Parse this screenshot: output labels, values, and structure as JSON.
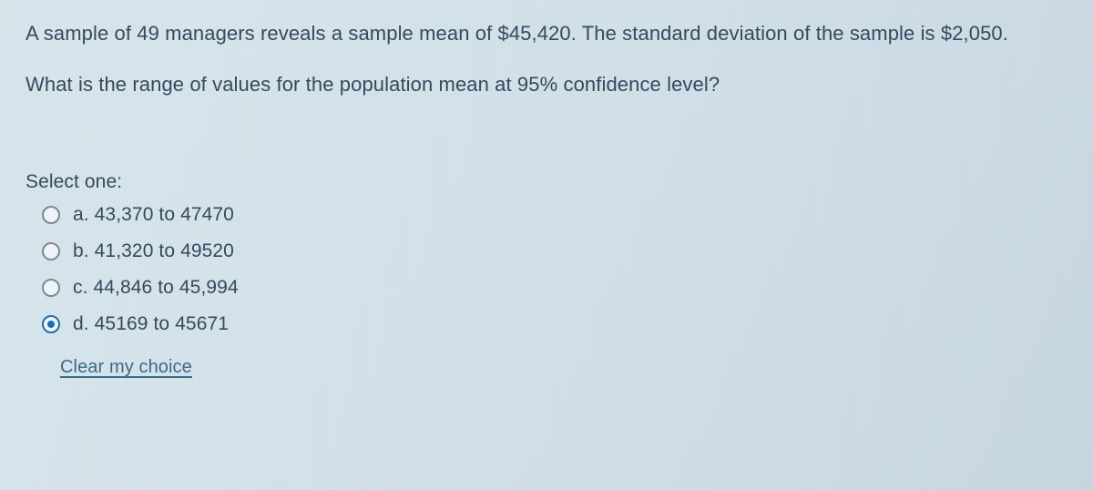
{
  "question": {
    "line1": "A sample of 49 managers reveals a sample mean of $45,420. The standard deviation of the sample is $2,050.",
    "line2": "What is the range of values for the population mean at 95% confidence level?"
  },
  "select_label": "Select one:",
  "options": [
    {
      "letter": "a.",
      "text": "43,370 to 47470",
      "selected": false
    },
    {
      "letter": "b.",
      "text": "41,320 to 49520",
      "selected": false
    },
    {
      "letter": "c.",
      "text": "44,846 to 45,994",
      "selected": false
    },
    {
      "letter": "d.",
      "text": "45169 to 45671",
      "selected": true
    }
  ],
  "clear_label": "Clear my choice",
  "colors": {
    "text": "#344a5e",
    "link": "#3a6a8a",
    "radio_border": "#7a8a96",
    "radio_selected": "#1f6fb2",
    "bg_start": "#d8e5ec",
    "bg_end": "#c6d6e0"
  },
  "font_sizes": {
    "question": 22,
    "option": 21,
    "link": 20
  }
}
